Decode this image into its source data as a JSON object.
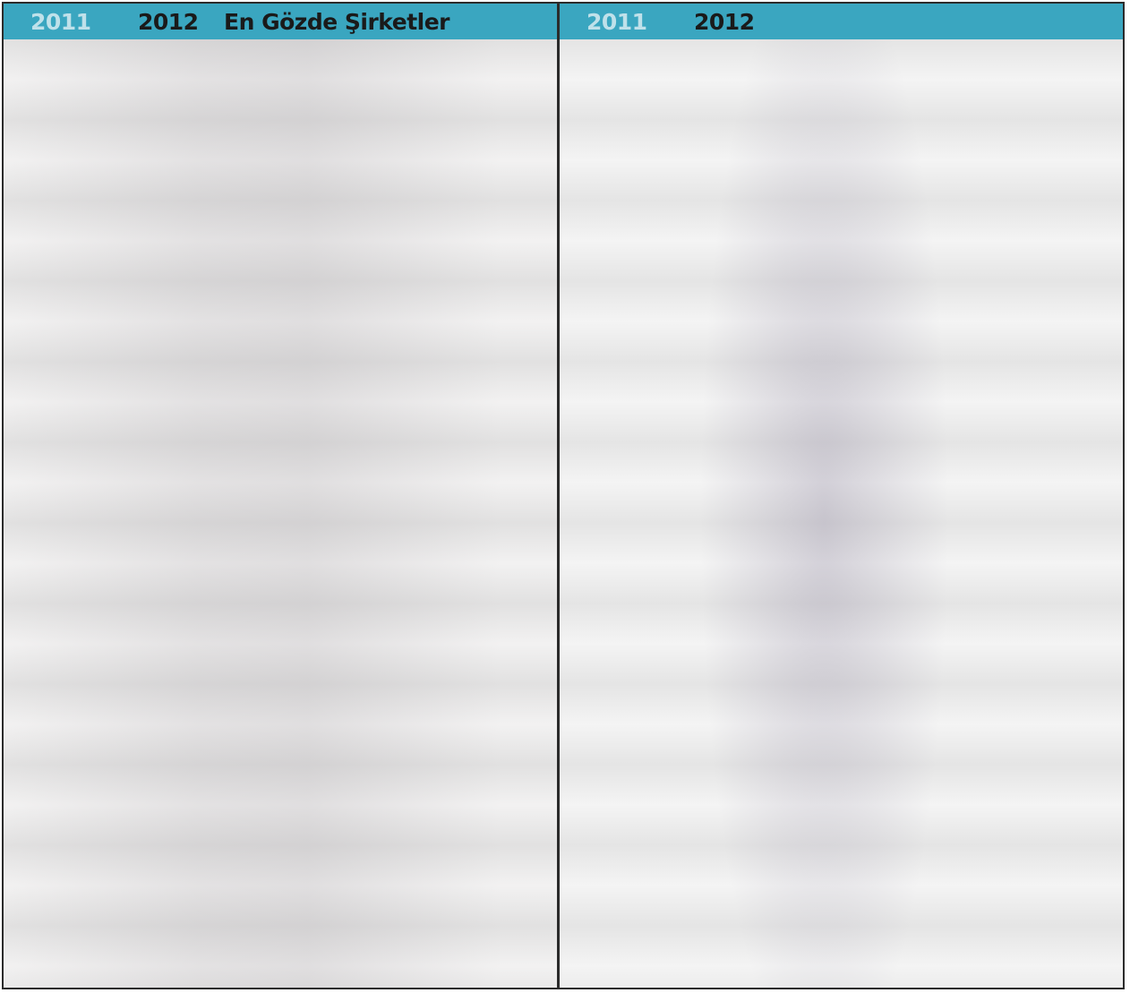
{
  "left_panel": {
    "header": {
      "year_previous": "2011",
      "year_current": "2012",
      "title": "En Gözde Şirketler"
    }
  },
  "right_panel": {
    "header": {
      "year_previous": "2011",
      "year_current": "2012"
    }
  }
}
